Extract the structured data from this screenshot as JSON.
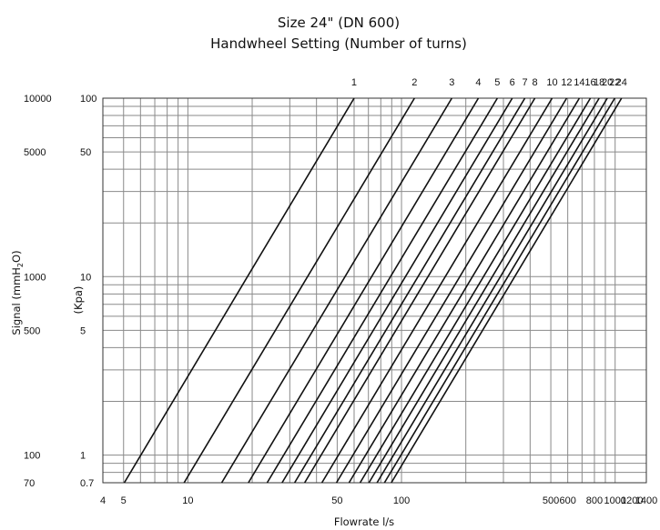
{
  "chart_data": {
    "type": "line",
    "title": "Size 24\" (DN 600)",
    "subtitle": "Handwheel Setting (Number of turns)",
    "xlabel": "Flowrate l/s",
    "ylabel_left": "Signal (mmH2O)",
    "ylabel_left_parts": {
      "before": "Signal (mmH",
      "sub": "2",
      "after": "O)"
    },
    "ylabel_right": "(Kpa)",
    "x_scale": "log",
    "y_scale": "log",
    "xlim": [
      4,
      1400
    ],
    "ylim_kpa": [
      0.7,
      100
    ],
    "grid": true,
    "x_ticks": [
      "4",
      "5",
      "10",
      "50",
      "100",
      "500",
      "600",
      "800",
      "1000",
      "1200",
      "1400"
    ],
    "y_ticks_kpa": [
      "100",
      "50",
      "10",
      "5",
      "1",
      "0.7"
    ],
    "y_ticks_mmh2o": [
      "10000",
      "5000",
      "1000",
      "500",
      "100",
      "70"
    ],
    "series": [
      {
        "name": "1",
        "points": [
          [
            5.04,
            0.7
          ],
          [
            60,
            100
          ]
        ]
      },
      {
        "name": "2",
        "points": [
          [
            9.6,
            0.7
          ],
          [
            115,
            100
          ]
        ]
      },
      {
        "name": "3",
        "points": [
          [
            14.4,
            0.7
          ],
          [
            172,
            100
          ]
        ]
      },
      {
        "name": "4",
        "points": [
          [
            19.2,
            0.7
          ],
          [
            229,
            100
          ]
        ]
      },
      {
        "name": "5",
        "points": [
          [
            23.5,
            0.7
          ],
          [
            281,
            100
          ]
        ]
      },
      {
        "name": "6",
        "points": [
          [
            27.6,
            0.7
          ],
          [
            330,
            100
          ]
        ]
      },
      {
        "name": "7",
        "points": [
          [
            31.6,
            0.7
          ],
          [
            378,
            100
          ]
        ]
      },
      {
        "name": "8",
        "points": [
          [
            35.2,
            0.7
          ],
          [
            421,
            100
          ]
        ]
      },
      {
        "name": "10",
        "points": [
          [
            42.4,
            0.7
          ],
          [
            507,
            100
          ]
        ]
      },
      {
        "name": "12",
        "points": [
          [
            49.6,
            0.7
          ],
          [
            593,
            100
          ]
        ]
      },
      {
        "name": "14",
        "points": [
          [
            56.8,
            0.7
          ],
          [
            680,
            100
          ]
        ]
      },
      {
        "name": "16",
        "points": [
          [
            64,
            0.7
          ],
          [
            766,
            100
          ]
        ]
      },
      {
        "name": "18",
        "points": [
          [
            70.4,
            0.7
          ],
          [
            842,
            100
          ]
        ]
      },
      {
        "name": "20",
        "points": [
          [
            76.8,
            0.7
          ],
          [
            919,
            100
          ]
        ]
      },
      {
        "name": "22",
        "points": [
          [
            83.2,
            0.7
          ],
          [
            996,
            100
          ]
        ]
      },
      {
        "name": "24",
        "points": [
          [
            89.6,
            0.7
          ],
          [
            1072,
            100
          ]
        ]
      }
    ]
  }
}
